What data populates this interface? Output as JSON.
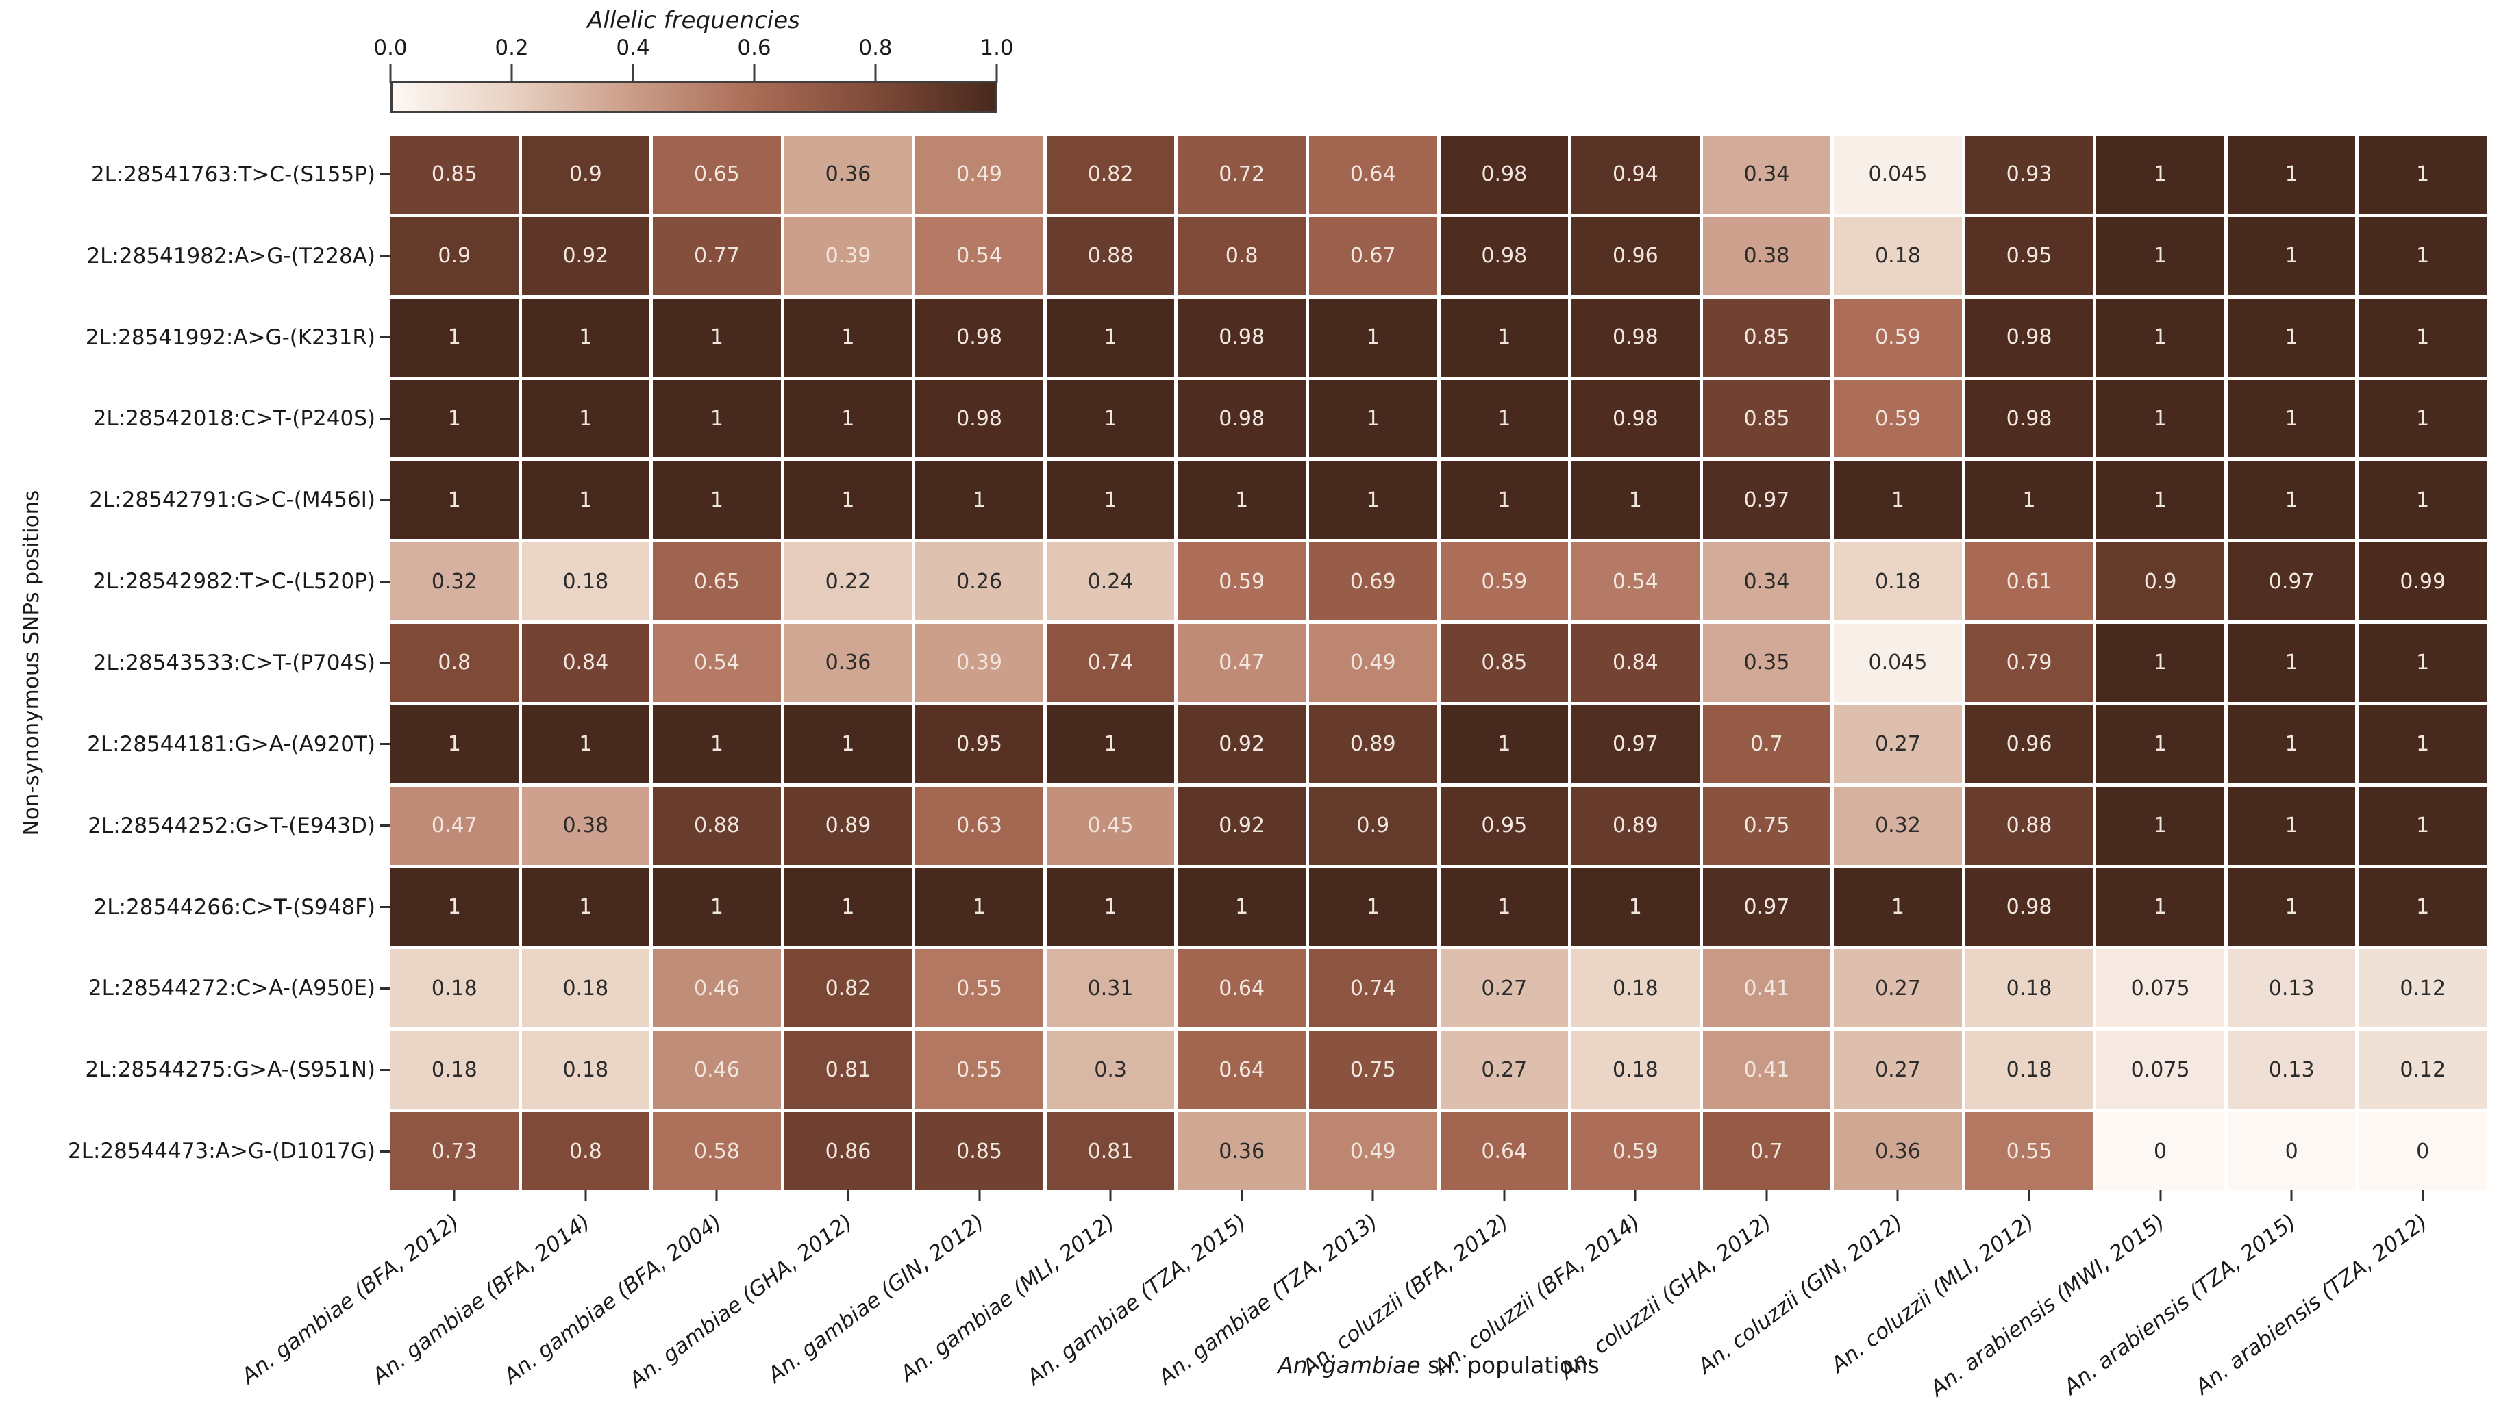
{
  "colorbar": {
    "title": "Allelic frequencies",
    "tick_labels": [
      "0.0",
      "0.2",
      "0.4",
      "0.6",
      "0.8",
      "1.0"
    ],
    "frame_color": "#3f3f3f"
  },
  "y_axis": {
    "title": "Non-synonymous SNPs positions"
  },
  "x_axis": {
    "title_italic_prefix": "An. gambiae",
    "title_suffix": " s.l. populations"
  },
  "chart_data": {
    "type": "heatmap",
    "title": "Allelic frequencies",
    "xlabel": "An. gambiae s.l. populations",
    "ylabel": "Non-synonymous SNPs positions",
    "vmin": 0.0,
    "vmax": 1.0,
    "legend_position": "colorbar-top",
    "grid": false,
    "rows": [
      "2L:28541763:T>C-(S155P)",
      "2L:28541982:A>G-(T228A)",
      "2L:28541992:A>G-(K231R)",
      "2L:28542018:C>T-(P240S)",
      "2L:28542791:G>C-(M456I)",
      "2L:28542982:T>C-(L520P)",
      "2L:28543533:C>T-(P704S)",
      "2L:28544181:G>A-(A920T)",
      "2L:28544252:G>T-(E943D)",
      "2L:28544266:C>T-(S948F)",
      "2L:28544272:C>A-(A950E)",
      "2L:28544275:G>A-(S951N)",
      "2L:28544473:A>G-(D1017G)"
    ],
    "columns": [
      "An. gambiae (BFA, 2012)",
      "An. gambiae (BFA, 2014)",
      "An. gambiae (BFA, 2004)",
      "An. gambiae (GHA, 2012)",
      "An. gambiae (GIN, 2012)",
      "An. gambiae (MLI, 2012)",
      "An. gambiae (TZA, 2015)",
      "An. gambiae (TZA, 2013)",
      "An. coluzzii (BFA, 2012)",
      "An. coluzzii (BFA, 2014)",
      "An. coluzzii (GHA, 2012)",
      "An. coluzzii (GIN, 2012)",
      "An. coluzzii (MLI, 2012)",
      "An. arabiensis (MWI, 2015)",
      "An. arabiensis (TZA, 2015)",
      "An. arabiensis (TZA, 2012)"
    ],
    "values": [
      [
        "0.85",
        "0.9",
        "0.65",
        "0.36",
        "0.49",
        "0.82",
        "0.72",
        "0.64",
        "0.98",
        "0.94",
        "0.34",
        "0.045",
        "0.93",
        "1",
        "1",
        "1"
      ],
      [
        "0.9",
        "0.92",
        "0.77",
        "0.39",
        "0.54",
        "0.88",
        "0.8",
        "0.67",
        "0.98",
        "0.96",
        "0.38",
        "0.18",
        "0.95",
        "1",
        "1",
        "1"
      ],
      [
        "1",
        "1",
        "1",
        "1",
        "0.98",
        "1",
        "0.98",
        "1",
        "1",
        "0.98",
        "0.85",
        "0.59",
        "0.98",
        "1",
        "1",
        "1"
      ],
      [
        "1",
        "1",
        "1",
        "1",
        "0.98",
        "1",
        "0.98",
        "1",
        "1",
        "0.98",
        "0.85",
        "0.59",
        "0.98",
        "1",
        "1",
        "1"
      ],
      [
        "1",
        "1",
        "1",
        "1",
        "1",
        "1",
        "1",
        "1",
        "1",
        "1",
        "0.97",
        "1",
        "1",
        "1",
        "1",
        "1"
      ],
      [
        "0.32",
        "0.18",
        "0.65",
        "0.22",
        "0.26",
        "0.24",
        "0.59",
        "0.69",
        "0.59",
        "0.54",
        "0.34",
        "0.18",
        "0.61",
        "0.9",
        "0.97",
        "0.99"
      ],
      [
        "0.8",
        "0.84",
        "0.54",
        "0.36",
        "0.39",
        "0.74",
        "0.47",
        "0.49",
        "0.85",
        "0.84",
        "0.35",
        "0.045",
        "0.79",
        "1",
        "1",
        "1"
      ],
      [
        "1",
        "1",
        "1",
        "1",
        "0.95",
        "1",
        "0.92",
        "0.89",
        "1",
        "0.97",
        "0.7",
        "0.27",
        "0.96",
        "1",
        "1",
        "1"
      ],
      [
        "0.47",
        "0.38",
        "0.88",
        "0.89",
        "0.63",
        "0.45",
        "0.92",
        "0.9",
        "0.95",
        "0.89",
        "0.75",
        "0.32",
        "0.88",
        "1",
        "1",
        "1"
      ],
      [
        "1",
        "1",
        "1",
        "1",
        "1",
        "1",
        "1",
        "1",
        "1",
        "1",
        "0.97",
        "1",
        "0.98",
        "1",
        "1",
        "1"
      ],
      [
        "0.18",
        "0.18",
        "0.46",
        "0.82",
        "0.55",
        "0.31",
        "0.64",
        "0.74",
        "0.27",
        "0.18",
        "0.41",
        "0.27",
        "0.18",
        "0.075",
        "0.13",
        "0.12"
      ],
      [
        "0.18",
        "0.18",
        "0.46",
        "0.81",
        "0.55",
        "0.3",
        "0.64",
        "0.75",
        "0.27",
        "0.18",
        "0.41",
        "0.27",
        "0.18",
        "0.075",
        "0.13",
        "0.12"
      ],
      [
        "0.73",
        "0.8",
        "0.58",
        "0.86",
        "0.85",
        "0.81",
        "0.36",
        "0.49",
        "0.64",
        "0.59",
        "0.7",
        "0.36",
        "0.55",
        "0",
        "0",
        "0"
      ]
    ],
    "colormap_stops": [
      {
        "t": 0.0,
        "color": "#fdf8f4"
      },
      {
        "t": 0.2,
        "color": "#e8d1c2"
      },
      {
        "t": 0.4,
        "color": "#ca9c87"
      },
      {
        "t": 0.6,
        "color": "#aa6c56"
      },
      {
        "t": 0.8,
        "color": "#7f4a38"
      },
      {
        "t": 1.0,
        "color": "#48291d"
      }
    ],
    "cell_text_light": "#f2e7e0",
    "cell_text_dark": "#2b2b2b",
    "light_text_threshold": 0.385
  }
}
